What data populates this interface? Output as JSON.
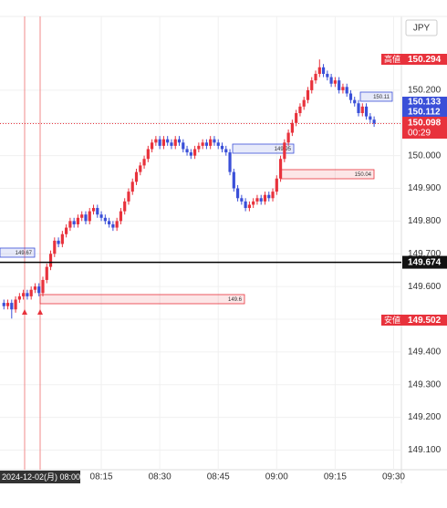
{
  "chart_data": {
    "type": "candlestick",
    "currency": "JPY",
    "x": [
      "07:50",
      "07:51",
      "07:52",
      "07:53",
      "07:54",
      "07:55",
      "07:56",
      "07:57",
      "07:58",
      "07:59",
      "08:00",
      "08:01",
      "08:02",
      "08:03",
      "08:04",
      "08:05",
      "08:06",
      "08:07",
      "08:08",
      "08:09",
      "08:10",
      "08:11",
      "08:12",
      "08:13",
      "08:14",
      "08:15",
      "08:16",
      "08:17",
      "08:18",
      "08:19",
      "08:20",
      "08:21",
      "08:22",
      "08:23",
      "08:24",
      "08:25",
      "08:26",
      "08:27",
      "08:28",
      "08:29",
      "08:30",
      "08:31",
      "08:32",
      "08:33",
      "08:34",
      "08:35",
      "08:36",
      "08:37",
      "08:38",
      "08:39",
      "08:40",
      "08:41",
      "08:42",
      "08:43",
      "08:44",
      "08:45",
      "08:46",
      "08:47",
      "08:48",
      "08:49",
      "08:50",
      "08:51",
      "08:52",
      "08:53",
      "08:54",
      "08:55",
      "08:56",
      "08:57",
      "08:58",
      "08:59",
      "09:00",
      "09:01",
      "09:02",
      "09:03",
      "09:04",
      "09:05",
      "09:06",
      "09:07",
      "09:08",
      "09:09",
      "09:10",
      "09:11",
      "09:12",
      "09:13",
      "09:14",
      "09:15",
      "09:16",
      "09:17",
      "09:18",
      "09:19",
      "09:20",
      "09:21",
      "09:22",
      "09:23",
      "09:24",
      "09:25"
    ],
    "open": [
      149.55,
      149.54,
      149.55,
      149.53,
      149.56,
      149.57,
      149.58,
      149.57,
      149.59,
      149.6,
      149.58,
      149.62,
      149.66,
      149.7,
      149.74,
      149.73,
      149.76,
      149.78,
      149.8,
      149.79,
      149.81,
      149.82,
      149.8,
      149.83,
      149.84,
      149.82,
      149.81,
      149.8,
      149.79,
      149.78,
      149.8,
      149.83,
      149.86,
      149.89,
      149.92,
      149.95,
      149.97,
      149.99,
      150.02,
      150.04,
      150.05,
      150.03,
      150.05,
      150.04,
      150.03,
      150.05,
      150.04,
      150.02,
      150.01,
      150.0,
      150.02,
      150.03,
      150.04,
      150.03,
      150.05,
      150.04,
      150.03,
      150.02,
      150.01,
      149.95,
      149.9,
      149.87,
      149.86,
      149.84,
      149.85,
      149.86,
      149.87,
      149.86,
      149.88,
      149.87,
      149.89,
      149.93,
      149.99,
      150.04,
      150.07,
      150.1,
      150.13,
      150.15,
      150.17,
      150.2,
      150.23,
      150.25,
      150.27,
      150.25,
      150.24,
      150.22,
      150.23,
      150.2,
      150.21,
      150.19,
      150.17,
      150.16,
      150.13,
      150.15,
      150.12,
      150.11
    ],
    "high": [
      149.56,
      149.56,
      149.56,
      149.57,
      149.58,
      149.59,
      149.59,
      149.6,
      149.61,
      149.61,
      149.63,
      149.67,
      149.71,
      149.75,
      149.75,
      149.77,
      149.79,
      149.81,
      149.81,
      149.82,
      149.83,
      149.83,
      149.84,
      149.85,
      149.85,
      149.83,
      149.82,
      149.81,
      149.8,
      149.81,
      149.84,
      149.87,
      149.9,
      149.93,
      149.96,
      149.98,
      150.0,
      150.03,
      150.05,
      150.06,
      150.06,
      150.06,
      150.06,
      150.05,
      150.06,
      150.06,
      150.05,
      150.03,
      150.02,
      150.03,
      150.04,
      150.05,
      150.05,
      150.06,
      150.06,
      150.05,
      150.04,
      150.03,
      150.02,
      149.96,
      149.91,
      149.88,
      149.87,
      149.86,
      149.87,
      149.88,
      149.88,
      149.89,
      149.89,
      149.9,
      149.94,
      150.0,
      150.05,
      150.08,
      150.11,
      150.14,
      150.16,
      150.18,
      150.21,
      150.24,
      150.26,
      150.294,
      150.28,
      150.26,
      150.25,
      150.24,
      150.24,
      150.22,
      150.22,
      150.2,
      150.18,
      150.17,
      150.16,
      150.16,
      150.13,
      150.12
    ],
    "low": [
      149.53,
      149.53,
      149.502,
      149.52,
      149.55,
      149.56,
      149.56,
      149.56,
      149.58,
      149.57,
      149.57,
      149.61,
      149.65,
      149.69,
      149.72,
      149.72,
      149.75,
      149.77,
      149.78,
      149.78,
      149.8,
      149.79,
      149.79,
      149.82,
      149.81,
      149.8,
      149.79,
      149.78,
      149.77,
      149.77,
      149.79,
      149.82,
      149.85,
      149.88,
      149.91,
      149.94,
      149.96,
      149.98,
      150.01,
      150.03,
      150.02,
      150.02,
      150.03,
      150.02,
      150.02,
      150.03,
      150.01,
      150.0,
      149.99,
      149.99,
      150.01,
      150.02,
      150.02,
      150.02,
      150.03,
      150.02,
      150.01,
      150.0,
      149.94,
      149.89,
      149.86,
      149.85,
      149.83,
      149.83,
      149.84,
      149.85,
      149.85,
      149.85,
      149.86,
      149.86,
      149.88,
      149.92,
      149.98,
      150.03,
      150.06,
      150.09,
      150.12,
      150.14,
      150.16,
      150.19,
      150.22,
      150.24,
      150.24,
      150.23,
      150.21,
      150.21,
      150.19,
      150.19,
      150.18,
      150.16,
      150.15,
      150.12,
      150.12,
      150.11,
      150.1,
      150.088
    ],
    "close": [
      149.54,
      149.55,
      149.53,
      149.56,
      149.57,
      149.58,
      149.57,
      149.59,
      149.6,
      149.58,
      149.62,
      149.66,
      149.7,
      149.74,
      149.73,
      149.76,
      149.78,
      149.8,
      149.79,
      149.81,
      149.82,
      149.8,
      149.83,
      149.84,
      149.82,
      149.81,
      149.8,
      149.79,
      149.78,
      149.8,
      149.83,
      149.86,
      149.89,
      149.92,
      149.95,
      149.97,
      149.99,
      150.02,
      150.04,
      150.05,
      150.03,
      150.05,
      150.04,
      150.03,
      150.05,
      150.04,
      150.02,
      150.01,
      150.0,
      150.02,
      150.03,
      150.04,
      150.03,
      150.05,
      150.04,
      150.03,
      150.02,
      150.01,
      149.95,
      149.9,
      149.87,
      149.86,
      149.84,
      149.85,
      149.86,
      149.87,
      149.86,
      149.88,
      149.87,
      149.89,
      149.93,
      149.99,
      150.04,
      150.07,
      150.1,
      150.13,
      150.15,
      150.17,
      150.2,
      150.23,
      150.25,
      150.27,
      150.25,
      150.24,
      150.22,
      150.23,
      150.2,
      150.21,
      150.19,
      150.17,
      150.16,
      150.13,
      150.15,
      150.12,
      150.11,
      150.098
    ],
    "up_color": "#e8323c",
    "down_color": "#3a4fd8",
    "xlim": [
      "07:49",
      "09:32"
    ],
    "xticks": [
      "08:15",
      "08:30",
      "08:45",
      "09:00",
      "09:15",
      "09:30"
    ],
    "ylim": [
      149.04,
      150.42
    ],
    "yticks": [
      {
        "value": 150.2,
        "label": "150.200"
      },
      {
        "value": 150.1,
        "label": "150.100"
      },
      {
        "value": 150,
        "label": "150.000"
      },
      {
        "value": 149.9,
        "label": "149.900"
      },
      {
        "value": 149.8,
        "label": "149.800"
      },
      {
        "value": 149.7,
        "label": "149.700"
      },
      {
        "value": 149.6,
        "label": "149.600"
      },
      {
        "value": 149.5,
        "label": "149.500"
      },
      {
        "value": 149.4,
        "label": "149.400"
      },
      {
        "value": 149.3,
        "label": "149.300"
      },
      {
        "value": 149.2,
        "label": "149.200"
      },
      {
        "value": 149.1,
        "label": "149.100"
      }
    ],
    "grid": true,
    "crosshair": {
      "price": 149.674,
      "time_label": "2024-12-02(月) 08:00"
    },
    "last_price": {
      "value": 150.098,
      "countdown": "00:29"
    },
    "high_badge": {
      "label": "高値",
      "value": 150.294
    },
    "low_badge": {
      "label": "安値",
      "value": 149.502
    },
    "side_badges": [
      {
        "value": 150.133,
        "color": "#3a4fd8"
      },
      {
        "value": 150.112,
        "color": "#3a4fd8"
      }
    ],
    "annotations": [
      {
        "label": 149.67,
        "color": "#3a4fd8"
      },
      {
        "label": 149.6,
        "color": "#e8323c"
      },
      {
        "label": 150.04,
        "color": "#e8323c"
      },
      {
        "label": 150.11,
        "color": "#3a4fd8"
      },
      {
        "label": 149.95,
        "color": "#3a4fd8"
      }
    ]
  }
}
